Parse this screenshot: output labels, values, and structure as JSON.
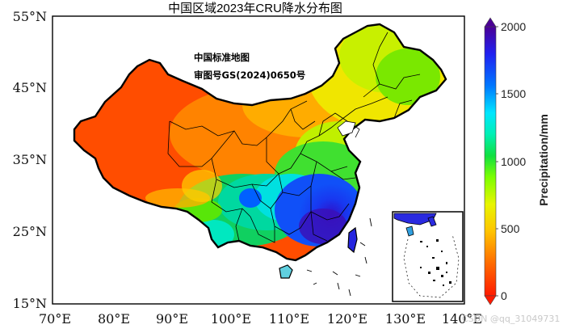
{
  "title": "中国区域2023年CRU降水分布图",
  "map": {
    "lat_labels": [
      "55°N",
      "45°N",
      "35°N",
      "25°N",
      "15°N"
    ],
    "lon_labels": [
      "70°E",
      "80°E",
      "90°E",
      "100°E",
      "110°E",
      "120°E",
      "130°E",
      "140°E"
    ],
    "extent": {
      "lon": [
        70,
        140
      ],
      "lat": [
        15,
        55
      ]
    },
    "annotation_line1": "中国标准地图",
    "annotation_line2": "审图号GS(2024)0650号"
  },
  "colorbar": {
    "label": "Precipitation/mm",
    "ticks": [
      "0",
      "500",
      "1000",
      "1500",
      "2000"
    ],
    "range": [
      0,
      2000
    ],
    "colors": [
      "#ff1a00",
      "#ff7f00",
      "#ffd500",
      "#c8ff00",
      "#3cff00",
      "#00e66e",
      "#00ffe6",
      "#008cff",
      "#1a1aff",
      "#4b0096"
    ]
  },
  "watermark": "CSDN @qq_31049731"
}
